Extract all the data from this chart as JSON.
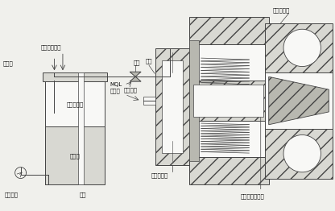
{
  "background_color": "#f0f0ec",
  "fig_width": 4.16,
  "fig_height": 2.62,
  "dpi": 100,
  "labels": {
    "dao_bing_qian_zhui_guan": "刀柄前锥管",
    "ruan_guan": "软管",
    "qiu_fa": "球阀",
    "MQL_zhuan_yong_guan": "MQL\n专用管",
    "you_wu_chan_sheng_pen_zui": "油雾产生喷嘴",
    "tiao_jie_fa": "调节阀",
    "you_qi_hun_he_wu": "油气混合物",
    "run_hua_you": "润滑油",
    "rong_qi": "容器",
    "ya_suo_kong_qi": "压缩空气",
    "you_wu_chu_kou": "油雾出口",
    "xuan_zhuan_fen_pei_qi": "旋转分配器",
    "zhu_zhou_nei_la_gan_nei_kong": "主轴内拉杆内孔"
  },
  "line_color": "#444444",
  "text_color": "#111111",
  "hatch_color": "#888888",
  "white": "#f8f8f6",
  "light_gray": "#d8d8d2",
  "medium_gray": "#b8b8b0",
  "dark_gray": "#909088"
}
